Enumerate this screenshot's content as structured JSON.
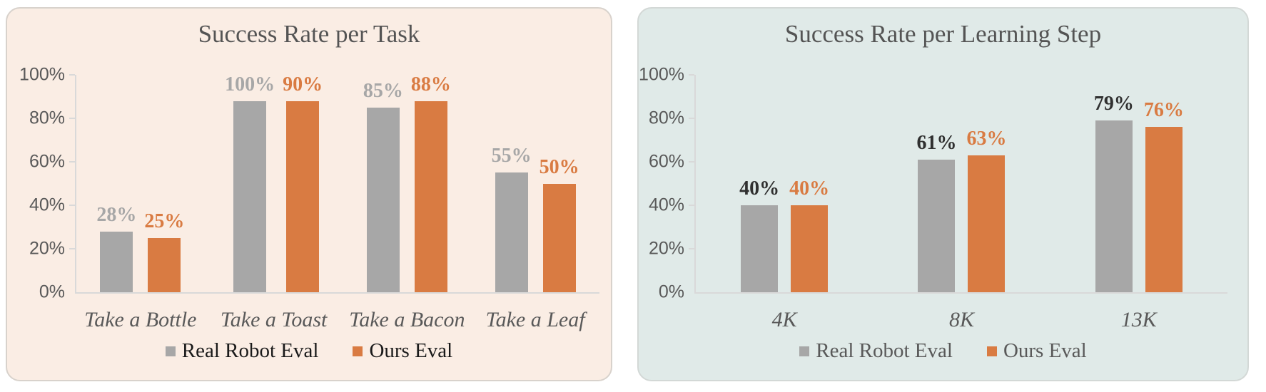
{
  "page": {
    "background": "#ffffff"
  },
  "chart_data": [
    {
      "type": "bar",
      "title": "Success Rate per Task",
      "categories": [
        "Take a Bottle",
        "Take a Toast",
        "Take a Bacon",
        "Take a Leaf"
      ],
      "series": [
        {
          "name": "Real Robot Eval",
          "color": "#A7A7A7",
          "label_color": "#A7A7A7",
          "values": [
            28,
            100,
            85,
            55
          ]
        },
        {
          "name": "Ours Eval",
          "color": "#D97B42",
          "label_color": "#D97B42",
          "values": [
            25,
            90,
            88,
            50
          ]
        }
      ],
      "value_suffix": "%",
      "xlabel": "",
      "ylabel": "",
      "ylim": [
        0,
        100
      ],
      "yticks": [
        "0%",
        "20%",
        "40%",
        "60%",
        "80%",
        "100%"
      ],
      "grid": false,
      "legend_position": "bottom",
      "panel_bg": "#FAEDE4",
      "panel_border": "#D8D2CC",
      "axis_color": "#D9D9D9",
      "tick_text_color": "#595959",
      "category_text_color": "#595959",
      "title_color": "#545454",
      "legend_text_color": "#1A1A1A"
    },
    {
      "type": "bar",
      "title": "Success Rate per Learning Step",
      "categories": [
        "4K",
        "8K",
        "13K"
      ],
      "series": [
        {
          "name": "Real Robot Eval",
          "color": "#A7A7A7",
          "label_color": "#303030",
          "values": [
            40,
            61,
            79
          ]
        },
        {
          "name": "Ours Eval",
          "color": "#D97B42",
          "label_color": "#D97B42",
          "values": [
            40,
            63,
            76
          ]
        }
      ],
      "value_suffix": "%",
      "xlabel": "",
      "ylabel": "",
      "ylim": [
        0,
        100
      ],
      "yticks": [
        "0%",
        "20%",
        "40%",
        "60%",
        "80%",
        "100%"
      ],
      "grid": false,
      "legend_position": "bottom",
      "panel_bg": "#E0EAE8",
      "panel_border": "#D3D8D6",
      "axis_color": "#D9D9D9",
      "tick_text_color": "#595959",
      "category_text_color": "#595959",
      "title_color": "#545454",
      "legend_text_color": "#595959"
    }
  ]
}
